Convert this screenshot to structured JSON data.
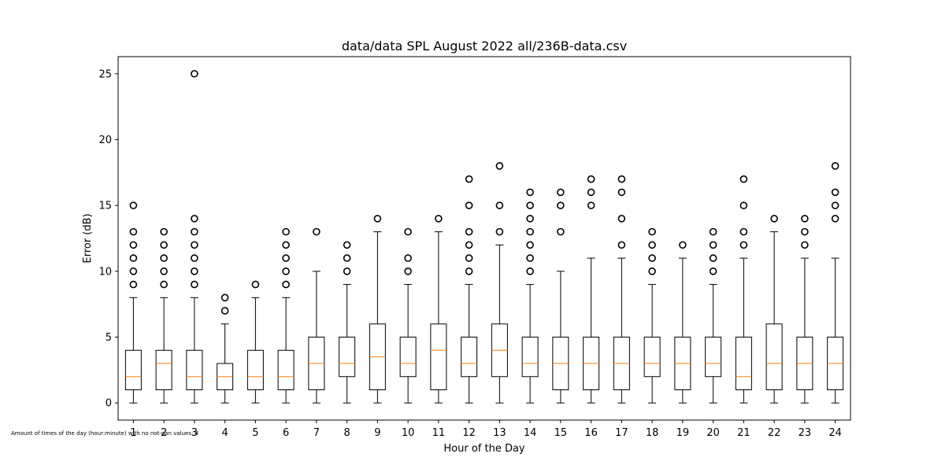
{
  "footnote": "Amount of times of the day (hour:minute) with no not-nan values: 4",
  "chart_data": {
    "type": "box",
    "title": "data/data SPL August 2022 all/236B-data.csv",
    "xlabel": "Hour of the Day",
    "ylabel": "Error (dB)",
    "ylim": [
      -1.3,
      26.3
    ],
    "yticks": [
      0,
      5,
      10,
      15,
      20,
      25
    ],
    "grid": false,
    "colors": {
      "box": "#000000",
      "median": "#ff7f0e",
      "outlier": "#000000"
    },
    "categories": [
      "1",
      "2",
      "3",
      "4",
      "5",
      "6",
      "7",
      "8",
      "9",
      "10",
      "11",
      "12",
      "13",
      "14",
      "15",
      "16",
      "17",
      "18",
      "19",
      "20",
      "21",
      "22",
      "23",
      "24"
    ],
    "boxes": [
      {
        "whisker_low": 0,
        "q1": 1,
        "median": 2,
        "q3": 4,
        "whisker_high": 8,
        "outliers": [
          9,
          10,
          11,
          12,
          13,
          15
        ]
      },
      {
        "whisker_low": 0,
        "q1": 1,
        "median": 3,
        "q3": 4,
        "whisker_high": 8,
        "outliers": [
          9,
          10,
          11,
          12,
          13
        ]
      },
      {
        "whisker_low": 0,
        "q1": 1,
        "median": 2,
        "q3": 4,
        "whisker_high": 8,
        "outliers": [
          9,
          10,
          11,
          12,
          13,
          14,
          25
        ]
      },
      {
        "whisker_low": 0,
        "q1": 1,
        "median": 2,
        "q3": 3,
        "whisker_high": 6,
        "outliers": [
          7,
          8
        ]
      },
      {
        "whisker_low": 0,
        "q1": 1,
        "median": 2,
        "q3": 4,
        "whisker_high": 8,
        "outliers": [
          9
        ]
      },
      {
        "whisker_low": 0,
        "q1": 1,
        "median": 2,
        "q3": 4,
        "whisker_high": 8,
        "outliers": [
          9,
          10,
          11,
          12,
          13
        ]
      },
      {
        "whisker_low": 0,
        "q1": 1,
        "median": 3,
        "q3": 5,
        "whisker_high": 10,
        "outliers": [
          13
        ]
      },
      {
        "whisker_low": 0,
        "q1": 2,
        "median": 3,
        "q3": 5,
        "whisker_high": 9,
        "outliers": [
          10,
          11,
          12
        ]
      },
      {
        "whisker_low": 0,
        "q1": 1,
        "median": 3.5,
        "q3": 6,
        "whisker_high": 13,
        "outliers": [
          14
        ]
      },
      {
        "whisker_low": 0,
        "q1": 2,
        "median": 3,
        "q3": 5,
        "whisker_high": 9,
        "outliers": [
          10,
          11,
          13
        ]
      },
      {
        "whisker_low": 0,
        "q1": 1,
        "median": 4,
        "q3": 6,
        "whisker_high": 13,
        "outliers": [
          14
        ]
      },
      {
        "whisker_low": 0,
        "q1": 2,
        "median": 3,
        "q3": 5,
        "whisker_high": 9,
        "outliers": [
          10,
          11,
          12,
          13,
          15,
          17
        ]
      },
      {
        "whisker_low": 0,
        "q1": 2,
        "median": 4,
        "q3": 6,
        "whisker_high": 12,
        "outliers": [
          13,
          15,
          18
        ]
      },
      {
        "whisker_low": 0,
        "q1": 2,
        "median": 3,
        "q3": 5,
        "whisker_high": 9,
        "outliers": [
          10,
          11,
          12,
          13,
          14,
          15,
          16
        ]
      },
      {
        "whisker_low": 0,
        "q1": 1,
        "median": 3,
        "q3": 5,
        "whisker_high": 10,
        "outliers": [
          13,
          15,
          16
        ]
      },
      {
        "whisker_low": 0,
        "q1": 1,
        "median": 3,
        "q3": 5,
        "whisker_high": 11,
        "outliers": [
          15,
          16,
          17
        ]
      },
      {
        "whisker_low": 0,
        "q1": 1,
        "median": 3,
        "q3": 5,
        "whisker_high": 11,
        "outliers": [
          12,
          14,
          16,
          17
        ]
      },
      {
        "whisker_low": 0,
        "q1": 2,
        "median": 3,
        "q3": 5,
        "whisker_high": 9,
        "outliers": [
          10,
          11,
          12,
          13
        ]
      },
      {
        "whisker_low": 0,
        "q1": 1,
        "median": 3,
        "q3": 5,
        "whisker_high": 11,
        "outliers": [
          12
        ]
      },
      {
        "whisker_low": 0,
        "q1": 2,
        "median": 3,
        "q3": 5,
        "whisker_high": 9,
        "outliers": [
          10,
          11,
          12,
          13
        ]
      },
      {
        "whisker_low": 0,
        "q1": 1,
        "median": 2,
        "q3": 5,
        "whisker_high": 11,
        "outliers": [
          12,
          13,
          15,
          17
        ]
      },
      {
        "whisker_low": 0,
        "q1": 1,
        "median": 3,
        "q3": 6,
        "whisker_high": 13,
        "outliers": [
          14
        ]
      },
      {
        "whisker_low": 0,
        "q1": 1,
        "median": 3,
        "q3": 5,
        "whisker_high": 11,
        "outliers": [
          12,
          13,
          14
        ]
      },
      {
        "whisker_low": 0,
        "q1": 1,
        "median": 3,
        "q3": 5,
        "whisker_high": 11,
        "outliers": [
          14,
          15,
          16,
          18
        ]
      }
    ]
  }
}
